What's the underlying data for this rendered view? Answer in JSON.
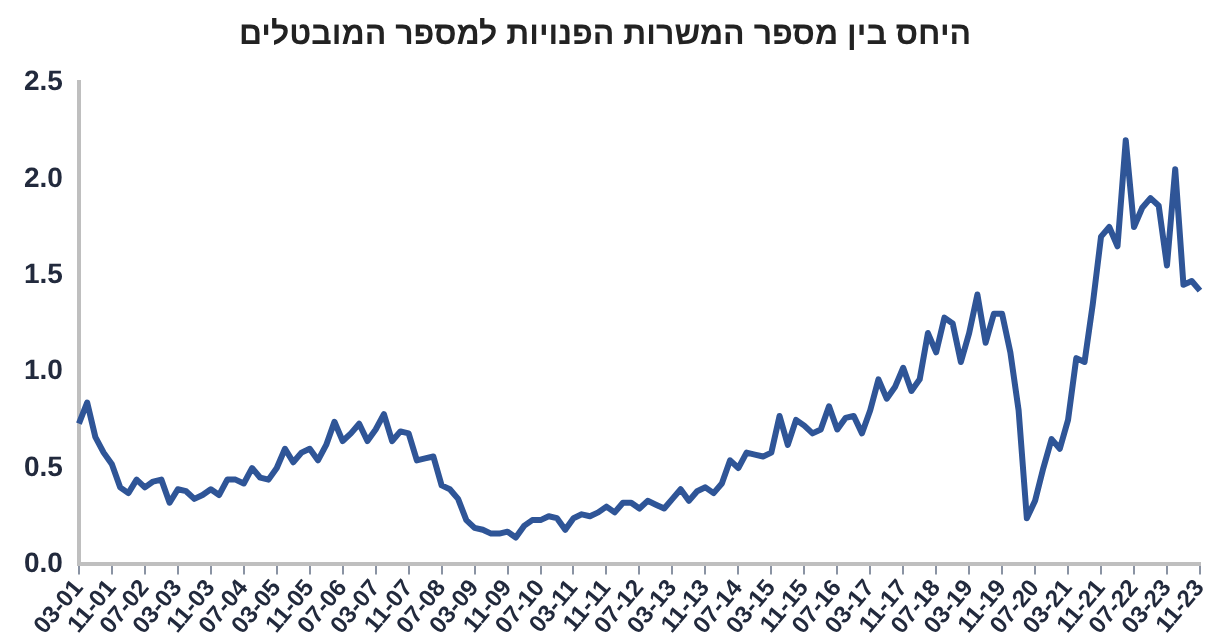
{
  "chart_data": {
    "type": "line",
    "title": "היחס בין מספר המשרות הפנויות למספר המובטלים",
    "categories": [
      "03-01",
      null,
      null,
      null,
      "11-01",
      null,
      null,
      null,
      "07-02",
      null,
      null,
      null,
      "03-03",
      null,
      null,
      null,
      "11-03",
      null,
      null,
      null,
      "07-04",
      null,
      null,
      null,
      "03-05",
      null,
      null,
      null,
      "11-05",
      null,
      null,
      null,
      "07-06",
      null,
      null,
      null,
      "03-07",
      null,
      null,
      null,
      "11-07",
      null,
      null,
      null,
      "07-08",
      null,
      null,
      null,
      "03-09",
      null,
      null,
      null,
      "11-09",
      null,
      null,
      null,
      "07-10",
      null,
      null,
      null,
      "03-11",
      null,
      null,
      null,
      "11-11",
      null,
      null,
      null,
      "07-12",
      null,
      null,
      null,
      "03-13",
      null,
      null,
      null,
      "11-13",
      null,
      null,
      null,
      "07-14",
      null,
      null,
      null,
      "03-15",
      null,
      null,
      null,
      "11-15",
      null,
      null,
      null,
      "07-16",
      null,
      null,
      null,
      "03-17",
      null,
      null,
      null,
      "11-17",
      null,
      null,
      null,
      "07-18",
      null,
      null,
      null,
      "03-19",
      null,
      null,
      null,
      "11-19",
      null,
      null,
      null,
      "07-20",
      null,
      null,
      null,
      "03-21",
      null,
      null,
      null,
      "11-21",
      null,
      null,
      null,
      "07-22",
      null,
      null,
      null,
      "03-23",
      null,
      null,
      null,
      "11-23"
    ],
    "series": [
      {
        "color": "#2f5597",
        "values": [
          0.73,
          0.84,
          0.66,
          0.58,
          0.52,
          0.4,
          0.37,
          0.44,
          0.4,
          0.43,
          0.44,
          0.32,
          0.39,
          0.38,
          0.34,
          0.36,
          0.39,
          0.36,
          0.44,
          0.44,
          0.42,
          0.5,
          0.45,
          0.44,
          0.5,
          0.6,
          0.53,
          0.58,
          0.6,
          0.54,
          0.62,
          0.74,
          0.64,
          0.68,
          0.73,
          0.64,
          0.7,
          0.78,
          0.64,
          0.69,
          0.68,
          0.54,
          0.55,
          0.56,
          0.41,
          0.39,
          0.34,
          0.23,
          0.19,
          0.18,
          0.16,
          0.16,
          0.17,
          0.14,
          0.2,
          0.23,
          0.23,
          0.25,
          0.24,
          0.18,
          0.24,
          0.26,
          0.25,
          0.27,
          0.3,
          0.27,
          0.32,
          0.32,
          0.29,
          0.33,
          0.31,
          0.29,
          0.34,
          0.39,
          0.33,
          0.38,
          0.4,
          0.37,
          0.42,
          0.54,
          0.5,
          0.58,
          0.57,
          0.56,
          0.58,
          0.77,
          0.62,
          0.75,
          0.72,
          0.68,
          0.7,
          0.82,
          0.7,
          0.76,
          0.77,
          0.68,
          0.8,
          0.96,
          0.86,
          0.92,
          1.02,
          0.9,
          0.96,
          1.2,
          1.1,
          1.28,
          1.25,
          1.05,
          1.2,
          1.4,
          1.15,
          1.3,
          1.3,
          1.1,
          0.8,
          0.24,
          0.33,
          0.5,
          0.65,
          0.6,
          0.75,
          1.07,
          1.05,
          1.35,
          1.7,
          1.75,
          1.65,
          2.2,
          1.75,
          1.85,
          1.9,
          1.86,
          1.55,
          2.05,
          1.45,
          1.47,
          1.42
        ]
      }
    ],
    "ylim": [
      0,
      2.5
    ],
    "yticks": [
      {
        "value": 0,
        "label": "0.0"
      },
      {
        "value": 0.5,
        "label": "0.5"
      },
      {
        "value": 1,
        "label": "1.0"
      },
      {
        "value": 1.5,
        "label": "1.5"
      },
      {
        "value": 2,
        "label": "2.0"
      },
      {
        "value": 2.5,
        "label": "2.5"
      }
    ],
    "grid": false,
    "legend": false,
    "marker": "none",
    "line_style": "solid"
  }
}
